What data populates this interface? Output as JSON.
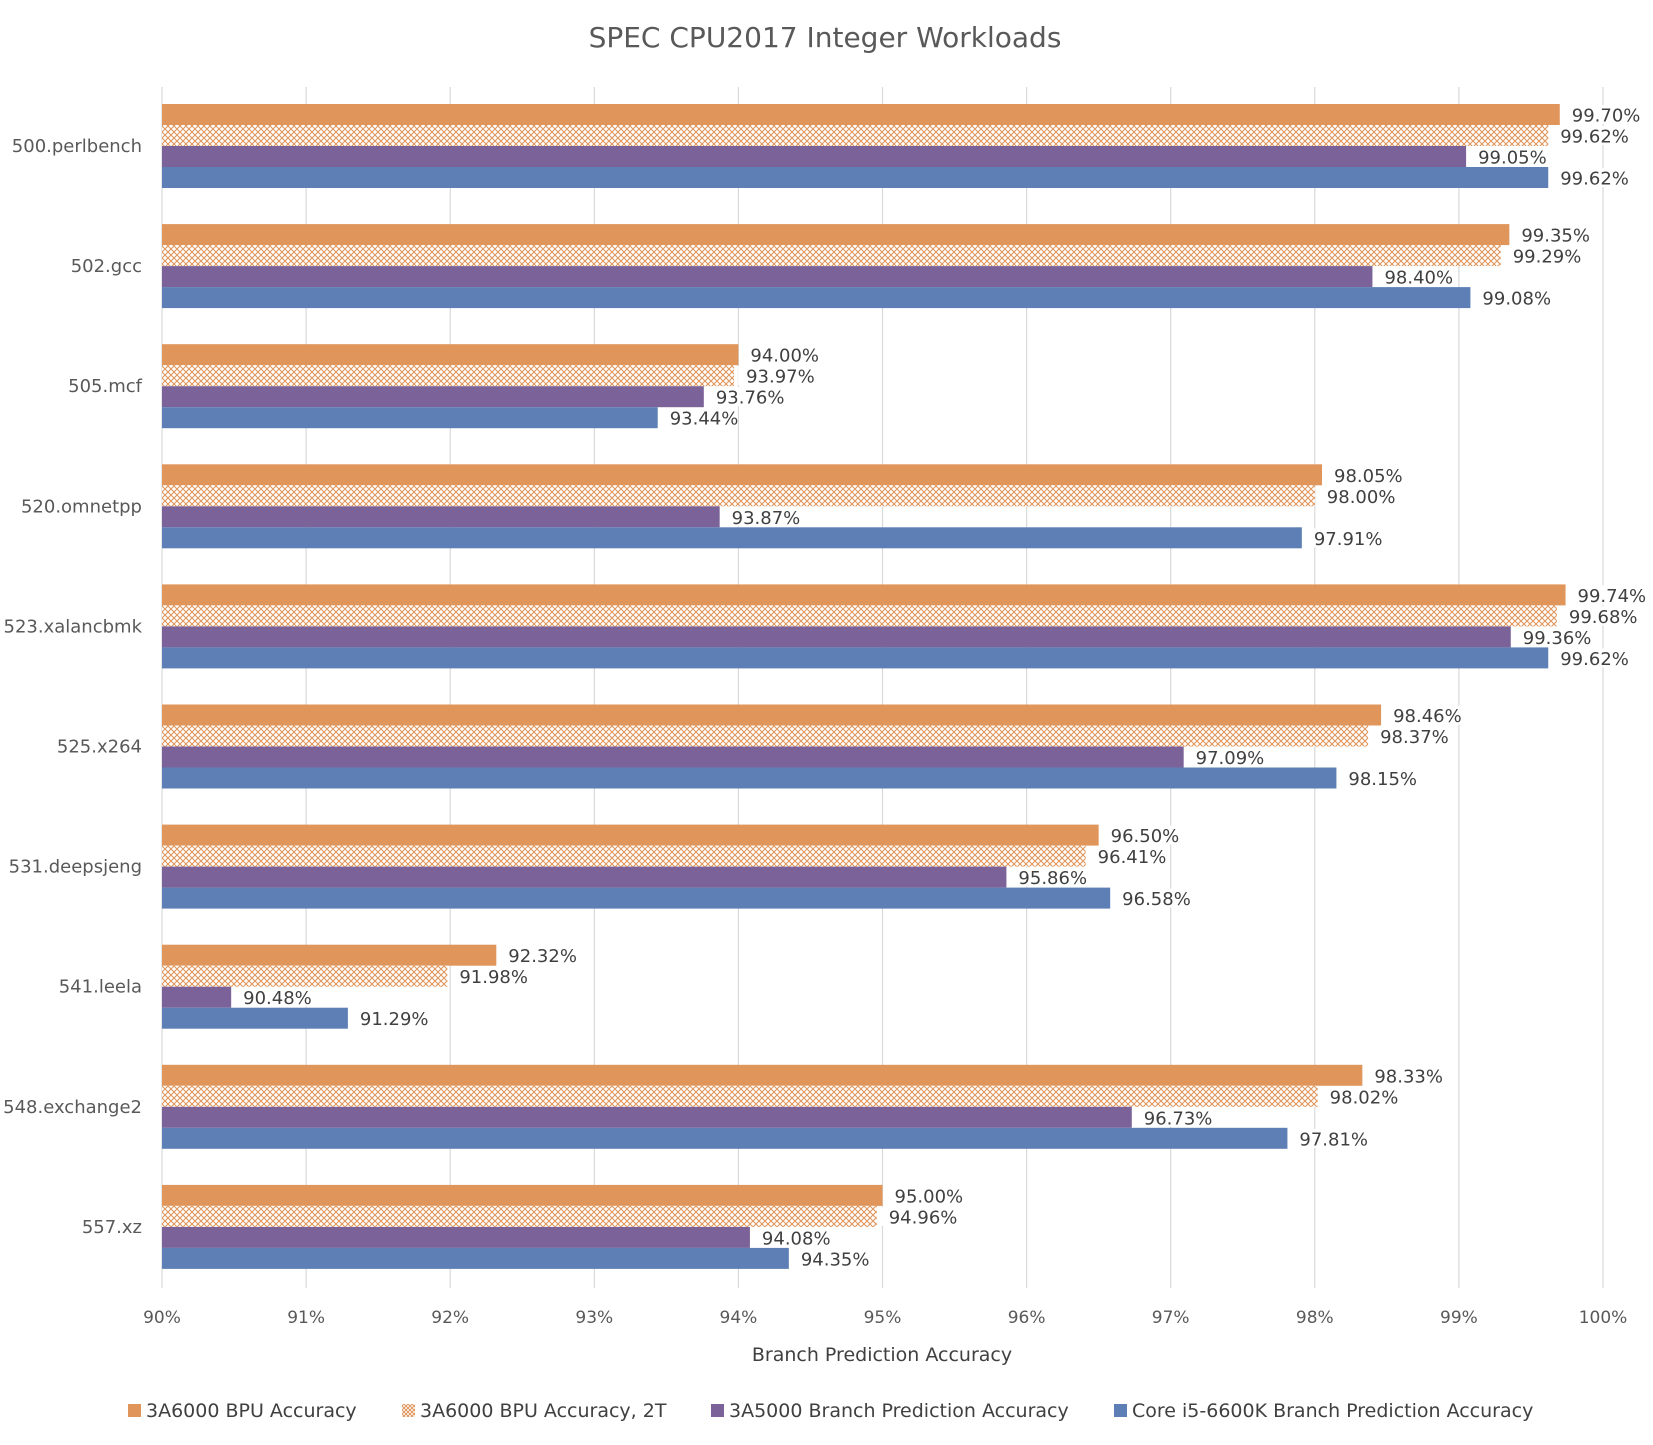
{
  "chart_data": {
    "type": "bar",
    "orientation": "horizontal",
    "title": "SPEC CPU2017 Integer Workloads",
    "xlabel": "Branch Prediction Accuracy",
    "ylabel": "",
    "xlim": [
      0.9,
      1.0
    ],
    "x_ticks": [
      "90%",
      "91%",
      "92%",
      "93%",
      "94%",
      "95%",
      "96%",
      "97%",
      "98%",
      "99%",
      "100%"
    ],
    "grid": "vertical",
    "legend_position": "bottom",
    "categories": [
      "500.perlbench",
      "502.gcc",
      "505.mcf",
      "520.omnetpp",
      "523.xalancbmk",
      "525.x264",
      "531.deepsjeng",
      "541.leela",
      "548.exchange2",
      "557.xz"
    ],
    "series": [
      {
        "name": "3A6000 BPU Accuracy",
        "color": "#E0955A",
        "pattern": "solid",
        "values": [
          0.997,
          0.9935,
          0.94,
          0.9805,
          0.9974,
          0.9846,
          0.965,
          0.9232,
          0.9833,
          0.95
        ],
        "labels": [
          "99.70%",
          "99.35%",
          "94.00%",
          "98.05%",
          "99.74%",
          "98.46%",
          "96.50%",
          "92.32%",
          "98.33%",
          "95.00%"
        ]
      },
      {
        "name": "3A6000 BPU Accuracy, 2T",
        "color": "#E0955A",
        "pattern": "crosshatch",
        "values": [
          0.9962,
          0.9929,
          0.9397,
          0.98,
          0.9968,
          0.9837,
          0.9641,
          0.9198,
          0.9802,
          0.9496
        ],
        "labels": [
          "99.62%",
          "99.29%",
          "93.97%",
          "98.00%",
          "99.68%",
          "98.37%",
          "96.41%",
          "91.98%",
          "98.02%",
          "94.96%"
        ]
      },
      {
        "name": "3A5000 Branch Prediction Accuracy",
        "color": "#7B6399",
        "pattern": "solid",
        "values": [
          0.9905,
          0.984,
          0.9376,
          0.9387,
          0.9936,
          0.9709,
          0.9586,
          0.9048,
          0.9673,
          0.9408
        ],
        "labels": [
          "99.05%",
          "98.40%",
          "93.76%",
          "93.87%",
          "99.36%",
          "97.09%",
          "95.86%",
          "90.48%",
          "96.73%",
          "94.08%"
        ]
      },
      {
        "name": "Core i5-6600K Branch Prediction Accuracy",
        "color": "#5E7FB6",
        "pattern": "solid",
        "values": [
          0.9962,
          0.9908,
          0.9344,
          0.9791,
          0.9962,
          0.9815,
          0.9658,
          0.9129,
          0.9781,
          0.9435
        ],
        "labels": [
          "99.62%",
          "99.08%",
          "93.44%",
          "97.91%",
          "99.62%",
          "98.15%",
          "96.58%",
          "91.29%",
          "97.81%",
          "94.35%"
        ]
      }
    ]
  }
}
